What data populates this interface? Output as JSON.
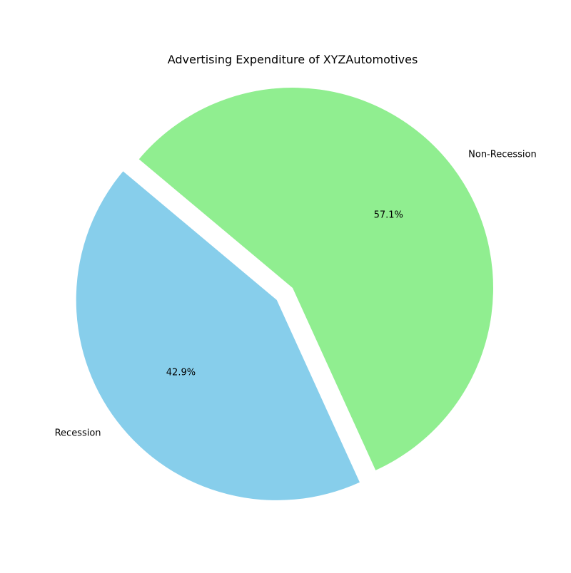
{
  "chart_data": {
    "type": "pie",
    "title": "Advertising Expenditure of XYZAutomotives",
    "slices": [
      {
        "label": "Recession",
        "value": 42.9,
        "percent_label": "42.9%",
        "color": "#87CEEB",
        "exploded": true
      },
      {
        "label": "Non-Recession",
        "value": 57.1,
        "percent_label": "57.1%",
        "color": "#90EE90",
        "exploded": false
      }
    ],
    "start_angle_deg": 140,
    "direction": "counterclockwise"
  }
}
